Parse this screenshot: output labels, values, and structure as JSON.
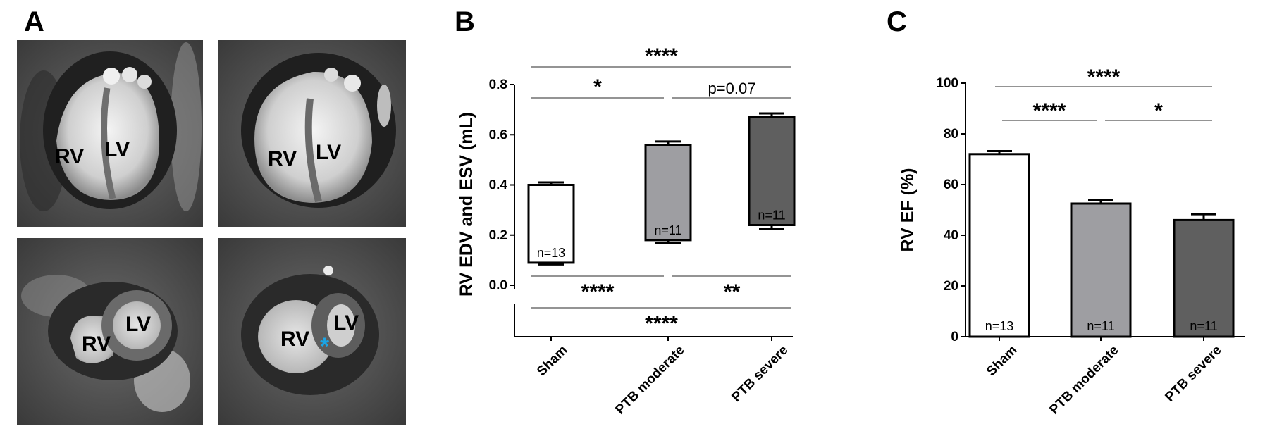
{
  "figure": {
    "panels": {
      "A": "A",
      "B": "B",
      "C": "C"
    }
  },
  "mri": {
    "images": [
      {
        "labels": [
          "RV",
          "LV"
        ]
      },
      {
        "labels": [
          "RV",
          "LV"
        ]
      },
      {
        "labels": [
          "RV",
          "LV"
        ]
      },
      {
        "labels": [
          "RV",
          "LV"
        ],
        "asterisk": "*"
      }
    ],
    "asterisk_color": "#1aa5e6"
  },
  "chart_data": [
    {
      "panel": "B",
      "type": "bar",
      "subtype": "floating-bar (EDV top, ESV bottom)",
      "categories": [
        "Sham",
        "PTB moderate",
        "PTB severe"
      ],
      "series": [
        {
          "name": "RV EDV",
          "values": [
            0.4,
            0.56,
            0.67
          ],
          "error": [
            0.01,
            0.013,
            0.015
          ]
        },
        {
          "name": "RV ESV",
          "values": [
            0.09,
            0.18,
            0.24
          ],
          "error": [
            0.007,
            0.01,
            0.016
          ]
        }
      ],
      "fill_colors": [
        "#ffffff",
        "#9e9ea2",
        "#5f5f5f"
      ],
      "n_labels": [
        "n=13",
        "n=11",
        "n=11"
      ],
      "ylabel": "RV EDV and ESV (mL)",
      "ylim": [
        0,
        0.8
      ],
      "yticks": [
        "0.0",
        "0.2",
        "0.4",
        "0.6",
        "0.8"
      ],
      "significance_top": [
        {
          "from": "Sham",
          "to": "PTB severe",
          "label": "****"
        },
        {
          "from": "Sham",
          "to": "PTB moderate",
          "label": "*"
        },
        {
          "from": "PTB moderate",
          "to": "PTB severe",
          "label": "p=0.07"
        }
      ],
      "significance_bottom": [
        {
          "from": "Sham",
          "to": "PTB moderate",
          "label": "****"
        },
        {
          "from": "PTB moderate",
          "to": "PTB severe",
          "label": "**"
        },
        {
          "from": "Sham",
          "to": "PTB severe",
          "label": "****"
        }
      ]
    },
    {
      "panel": "C",
      "type": "bar",
      "categories": [
        "Sham",
        "PTB moderate",
        "PTB severe"
      ],
      "values": [
        72,
        52.5,
        46
      ],
      "error": [
        1.2,
        1.5,
        2.3
      ],
      "fill_colors": [
        "#ffffff",
        "#9e9ea2",
        "#5f5f5f"
      ],
      "n_labels": [
        "n=13",
        "n=11",
        "n=11"
      ],
      "ylabel": "RV EF (%)",
      "ylim": [
        0,
        100
      ],
      "yticks": [
        "0",
        "20",
        "40",
        "60",
        "80",
        "100"
      ],
      "significance": [
        {
          "from": "Sham",
          "to": "PTB severe",
          "label": "****"
        },
        {
          "from": "Sham",
          "to": "PTB moderate",
          "label": "****"
        },
        {
          "from": "PTB moderate",
          "to": "PTB severe",
          "label": "*"
        }
      ]
    }
  ]
}
